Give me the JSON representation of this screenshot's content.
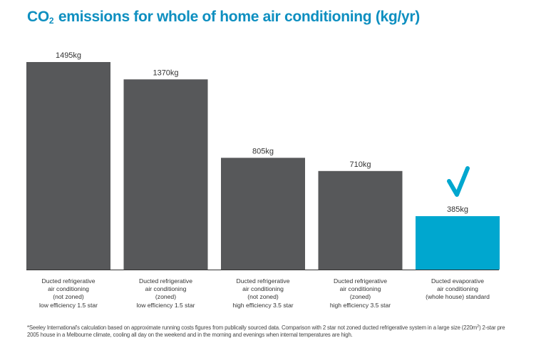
{
  "title": {
    "prefix": "CO",
    "subscript": "2",
    "rest": " emissions for whole of home air conditioning (kg/yr)"
  },
  "chart_data": {
    "type": "bar",
    "title": "CO2 emissions for whole of home air conditioning (kg/yr)",
    "xlabel": "",
    "ylabel": "",
    "ylim": [
      0,
      1495
    ],
    "unit": "kg",
    "categories": [
      [
        "Ducted refrigerative",
        "air conditioning",
        "(not zoned)",
        "low efficiency 1.5 star"
      ],
      [
        "Ducted refrigerative",
        "air conditioning",
        "(zoned)",
        "low efficiency 1.5 star"
      ],
      [
        "Ducted refrigerative",
        "air conditioning",
        "(not zoned)",
        "high efficiency 3.5 star"
      ],
      [
        "Ducted refrigerative",
        "air conditioning",
        "(zoned)",
        "high efficiency 3.5 star"
      ],
      [
        "Ducted evaporative",
        "air conditioning",
        "(whole house) standard"
      ]
    ],
    "values": [
      1495,
      1370,
      805,
      710,
      385
    ],
    "value_labels": [
      "1495kg",
      "1370kg",
      "805kg",
      "710kg",
      "385kg"
    ],
    "highlight_index": 4,
    "highlight_marker": "checkmark",
    "grid": false
  },
  "colors": {
    "title": "#0e8fc0",
    "bar": "#57585a",
    "highlight": "#00a7cf",
    "check": "#00a7cf",
    "axis": "#333333"
  },
  "footnote": {
    "part1": "*Seeley International's calculation based on approximate running costs figures from publically sourced data. Comparison with 2 star not zoned ducted refrigerative system in a large size (220m",
    "sup": "2",
    "part2": ") 2-star pre 2005 house in a Melbourne climate, cooling all day on the weekend and in the morning and evenings when internal temperatures are high."
  }
}
